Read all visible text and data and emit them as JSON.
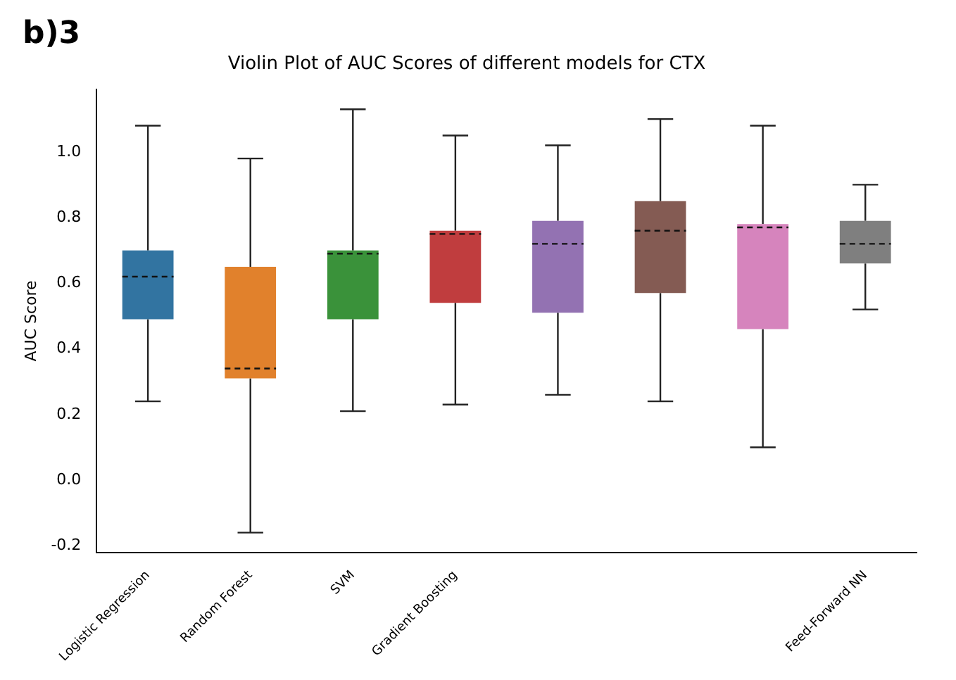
{
  "chart_data": {
    "type": "box",
    "title": "Violin Plot of AUC Scores of different models for CTX",
    "ylabel": "AUC Score",
    "annotations": [
      "b)3"
    ],
    "categories": [
      "Logistic Regression",
      "Random Forest",
      "SVM",
      "Gradient Boosting",
      null,
      null,
      null,
      "Feed-Forward NN"
    ],
    "colors": [
      "#3274a1",
      "#e1812c",
      "#3a923a",
      "#c03d3e",
      "#9372b2",
      "#845b53",
      "#d684bd",
      "#7f7f7f"
    ],
    "boxes": [
      {
        "low": 0.24,
        "q1": 0.49,
        "median": 0.62,
        "q3": 0.7,
        "high": 1.08
      },
      {
        "low": -0.16,
        "q1": 0.31,
        "median": 0.34,
        "q3": 0.65,
        "high": 0.98
      },
      {
        "low": 0.21,
        "q1": 0.49,
        "median": 0.69,
        "q3": 0.7,
        "high": 1.13
      },
      {
        "low": 0.23,
        "q1": 0.54,
        "median": 0.75,
        "q3": 0.76,
        "high": 1.05
      },
      {
        "low": 0.26,
        "q1": 0.51,
        "median": 0.72,
        "q3": 0.79,
        "high": 1.02
      },
      {
        "low": 0.24,
        "q1": 0.57,
        "median": 0.76,
        "q3": 0.85,
        "high": 1.1
      },
      {
        "low": 0.1,
        "q1": 0.46,
        "median": 0.77,
        "q3": 0.78,
        "high": 1.08
      },
      {
        "low": 0.52,
        "q1": 0.66,
        "median": 0.72,
        "q3": 0.79,
        "high": 0.9
      }
    ],
    "ylim": [
      -0.22,
      1.19
    ],
    "yticks": [
      -0.2,
      {
        "value": 0,
        "label": "0.0"
      },
      0.2,
      0.4,
      0.6,
      0.8,
      {
        "value": 1,
        "label": "1.0"
      }
    ],
    "grid": false,
    "legend": false
  }
}
